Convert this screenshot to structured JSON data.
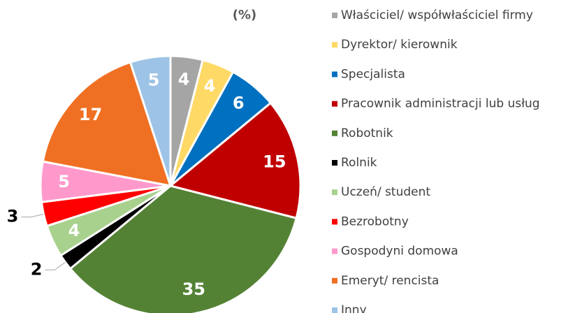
{
  "chart_data": {
    "type": "pie",
    "title": "(%)",
    "categories": [
      "Właściciel/ współwłaściciel firmy",
      "Dyrektor/ kierownik",
      "Specjalista",
      "Pracownik administracji lub usług",
      "Robotnik",
      "Rolnik",
      "Uczeń/ student",
      "Bezrobotny",
      "Gospodyni domowa",
      "Emeryt/ rencista",
      "Inny"
    ],
    "values": [
      4,
      4,
      6,
      15,
      35,
      2,
      4,
      3,
      5,
      17,
      5
    ],
    "colors": [
      "#a5a5a5",
      "#ffd966",
      "#0070c0",
      "#c00000",
      "#548235",
      "#000000",
      "#a9d18e",
      "#ff0000",
      "#ff99cc",
      "#f07023",
      "#9dc3e6"
    ],
    "legend": "right"
  }
}
